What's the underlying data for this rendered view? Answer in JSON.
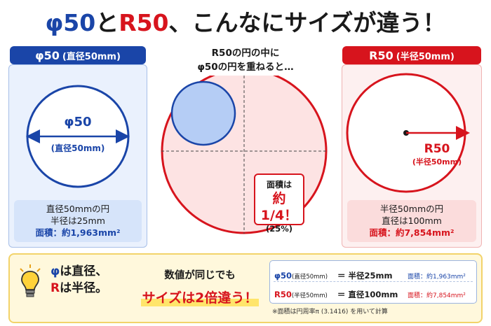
{
  "title": {
    "part1": "φ50",
    "part2": "と",
    "part3": "R50",
    "part4": "、こんなにサイズが違う！"
  },
  "left": {
    "header_main": "φ50",
    "header_sub": "(直径50mm)",
    "circle_label": "φ50",
    "circle_sub": "(直径50mm)",
    "info_line1": "直径50mmの円",
    "info_line2": "半径は25mm",
    "info_line3": "面積：約1,963mm²"
  },
  "middle": {
    "caption_line1": "R50の円の中に",
    "caption_line2": "φ50の円を重ねると…",
    "area_line1": "面積は",
    "area_line2": "約1/4！",
    "area_line3": "(25%)"
  },
  "right": {
    "header_main": "R50",
    "header_sub": "(半径50mm)",
    "radius_label": "R50",
    "radius_sub": "(半径50mm)",
    "info_line1": "半径50mmの円",
    "info_line2": "直径は100mm",
    "info_line3": "面積：約7,854mm²"
  },
  "bottom": {
    "left_line1_a": "φ",
    "left_line1_b": "は直径、",
    "left_line2_a": "R",
    "left_line2_b": "は半径。",
    "mid_line1": "数値が同じでも",
    "mid_line2": "サイズは2倍違う！",
    "row1_label": "φ50",
    "row1_sub": "(直径50mm)",
    "row1_eq": "＝ 半径25mm",
    "row1_area": "面積：約1,963mm²",
    "row2_label": "R50",
    "row2_sub": "(半径50mm)",
    "row2_eq": "＝ 直径100mm",
    "row2_area": "面積：約7,854mm²",
    "footnote": "※面積は円周率π (3.1416) を用いて計算"
  },
  "colors": {
    "blue": "#1a45a8",
    "red": "#d7141d",
    "yellow": "#ffe56b"
  }
}
